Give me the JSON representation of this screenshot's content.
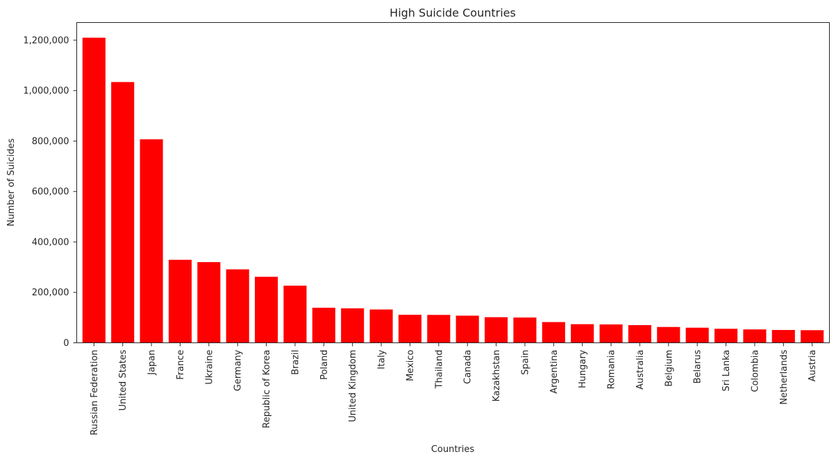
{
  "chart_data": {
    "type": "bar",
    "title": "High Suicide Countries",
    "xlabel": "Countries",
    "ylabel": "Number of Suicides",
    "ylim": [
      0,
      1270000
    ],
    "yticks": [
      "0",
      "200,000",
      "400,000",
      "600,000",
      "800,000",
      "1,000,000",
      "1,200,000"
    ],
    "ytick_values": [
      0,
      200000,
      400000,
      600000,
      800000,
      1000000,
      1200000
    ],
    "categories": [
      "Russian Federation",
      "United States",
      "Japan",
      "France",
      "Ukraine",
      "Germany",
      "Republic of Korea",
      "Brazil",
      "Poland",
      "United Kingdom",
      "Italy",
      "Mexico",
      "Thailand",
      "Canada",
      "Kazakhstan",
      "Spain",
      "Argentina",
      "Hungary",
      "Romania",
      "Australia",
      "Belgium",
      "Belarus",
      "Sri Lanka",
      "Colombia",
      "Netherlands",
      "Austria"
    ],
    "values": [
      1209742,
      1034013,
      806902,
      329127,
      319950,
      291262,
      261730,
      226613,
      139098,
      136805,
      132060,
      111139,
      110643,
      107561,
      101546,
      100202,
      82219,
      73891,
      72777,
      70111,
      62761,
      59892,
      55641,
      53080,
      50833,
      50073
    ],
    "bar_color": "#ff0000",
    "grid": false,
    "legend": "none"
  }
}
